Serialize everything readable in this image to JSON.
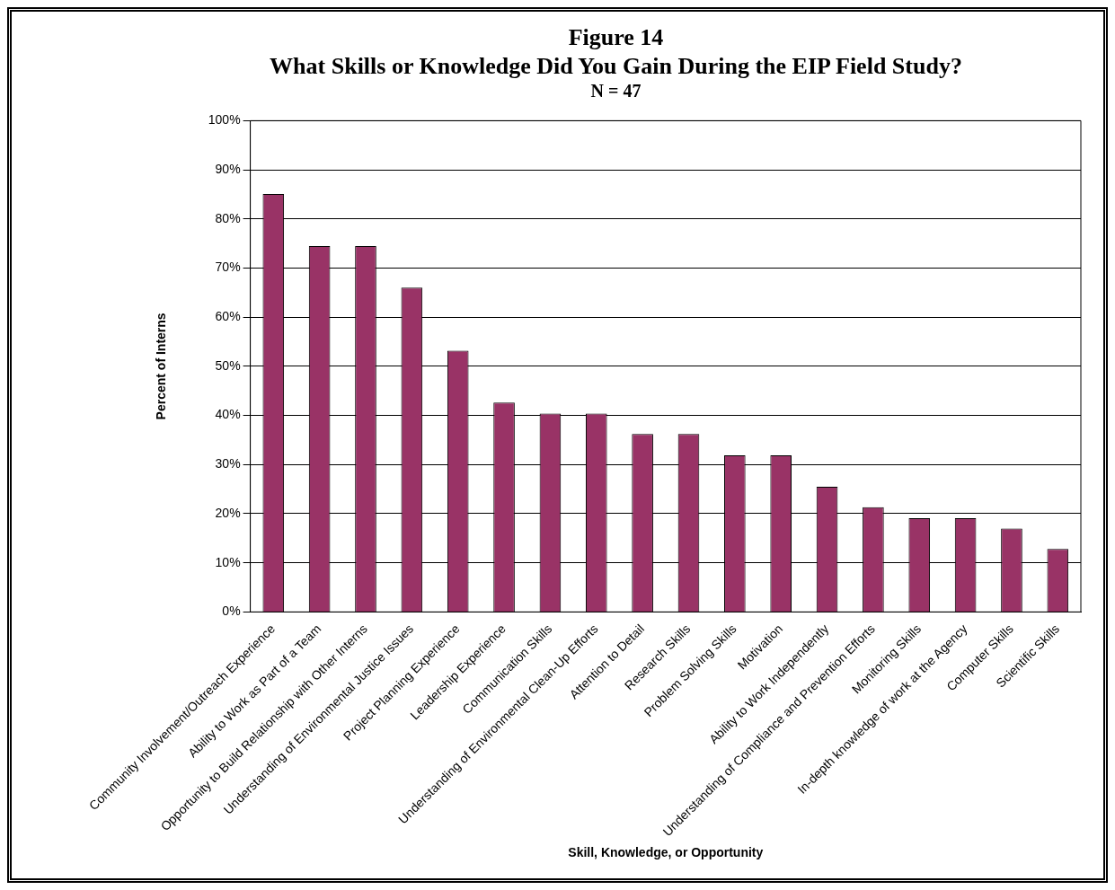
{
  "chart_data": {
    "type": "bar",
    "title": "Figure 14\nWhat Skills or Knowledge Did You Gain During the EIP Field Study?",
    "subtitle": "N = 47",
    "xlabel": "Skill, Knowledge, or Opportunity",
    "ylabel": "Percent of Interns",
    "categories": [
      "Community Involvement/Outreach Experience",
      "Ability to Work as Part of a Team",
      "Opportunity to Build Relationship with Other Interns",
      "Understanding of Environmental Justice Issues",
      "Project Planning Experience",
      "Leadership Experience",
      "Communication Skills",
      "Understanding of Environmental Clean-Up Efforts",
      "Attention to Detail",
      "Research Skills",
      "Problem Solving Skills",
      "Motivation",
      "Ability to Work Independently",
      "Understanding of Compliance and Prevention Efforts",
      "Monitoring Skills",
      "In-depth knowledge of work at the Agency",
      "Computer Skills",
      "Scientific Skills"
    ],
    "values": [
      85.1,
      74.5,
      74.5,
      66.0,
      53.2,
      42.6,
      40.4,
      40.4,
      36.2,
      36.2,
      31.9,
      31.9,
      25.5,
      21.3,
      19.1,
      19.1,
      17.0,
      12.8
    ],
    "color": "#993366",
    "ylim": [
      0,
      100
    ],
    "yticks": [
      {
        "value": 0,
        "label": "0%"
      },
      {
        "value": 10,
        "label": "10%"
      },
      {
        "value": 20,
        "label": "20%"
      },
      {
        "value": 30,
        "label": "30%"
      },
      {
        "value": 40,
        "label": "40%"
      },
      {
        "value": 50,
        "label": "50%"
      },
      {
        "value": 60,
        "label": "60%"
      },
      {
        "value": 70,
        "label": "70%"
      },
      {
        "value": 80,
        "label": "80%"
      },
      {
        "value": 90,
        "label": "90%"
      },
      {
        "value": 100,
        "label": "100%"
      }
    ],
    "grid": "y",
    "legend": false
  }
}
